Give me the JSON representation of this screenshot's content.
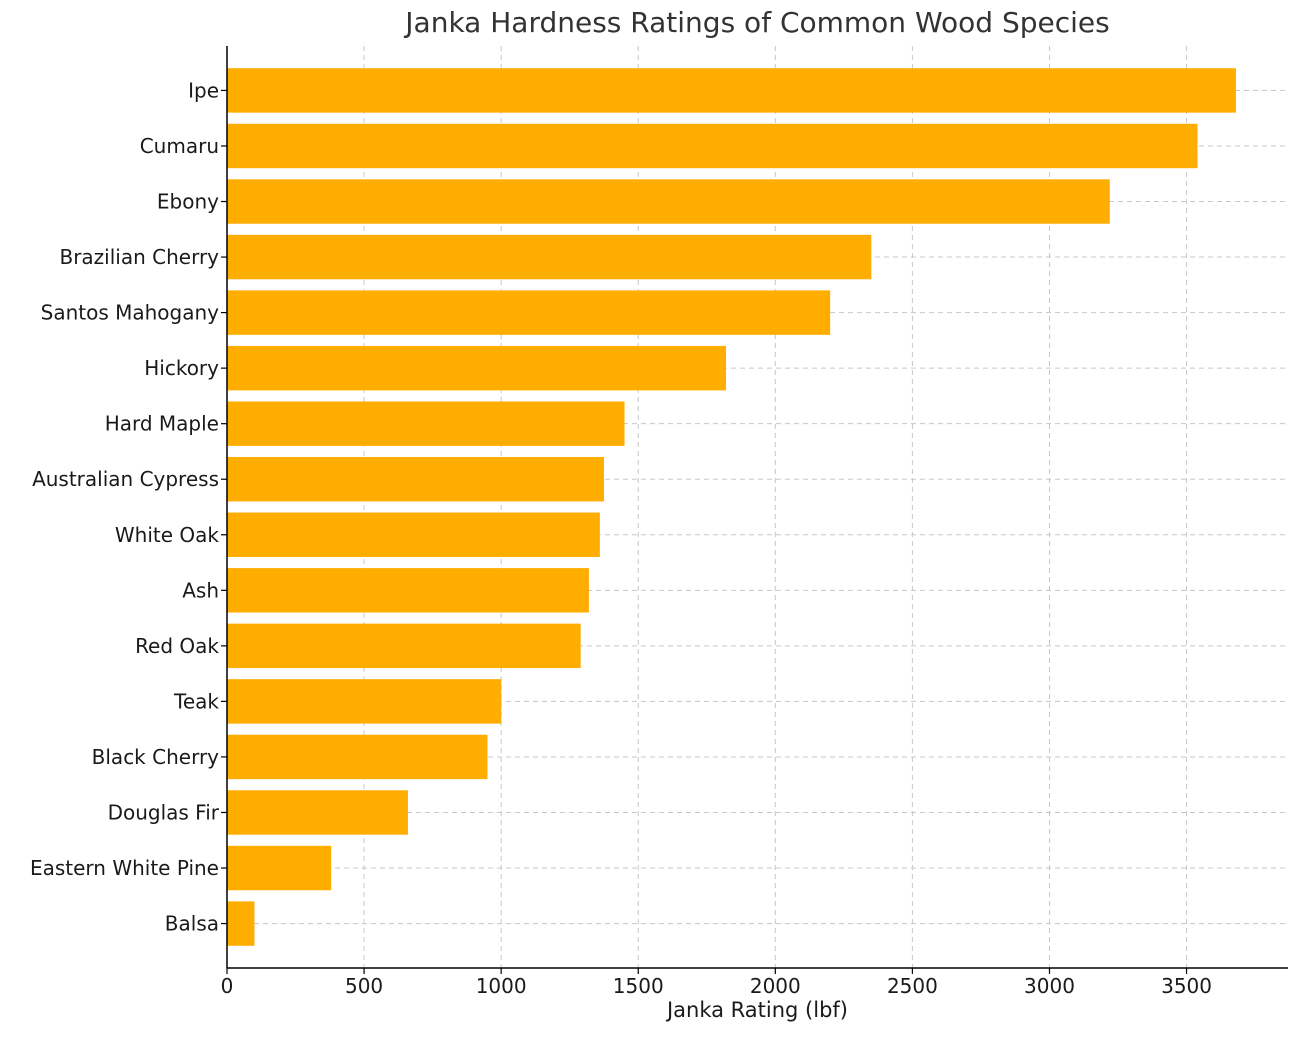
{
  "chart_data": {
    "type": "bar",
    "orientation": "horizontal",
    "title": "Janka Hardness Ratings of Common Wood Species",
    "xlabel": "Janka Rating (lbf)",
    "ylabel": "",
    "xlim": [
      0,
      3870
    ],
    "xticks": [
      "0",
      "500",
      "1000",
      "1500",
      "2000",
      "2500",
      "3000",
      "3500"
    ],
    "grid": true,
    "bar_color": "#ffad00",
    "categories": [
      "Ipe",
      "Cumaru",
      "Ebony",
      "Brazilian Cherry",
      "Santos Mahogany",
      "Hickory",
      "Hard Maple",
      "Australian Cypress",
      "White Oak",
      "Ash",
      "Red Oak",
      "Teak",
      "Black Cherry",
      "Douglas Fir",
      "Eastern White Pine",
      "Balsa"
    ],
    "values": [
      3680,
      3540,
      3220,
      2350,
      2200,
      1820,
      1450,
      1375,
      1360,
      1320,
      1290,
      1000,
      950,
      660,
      380,
      100
    ]
  }
}
